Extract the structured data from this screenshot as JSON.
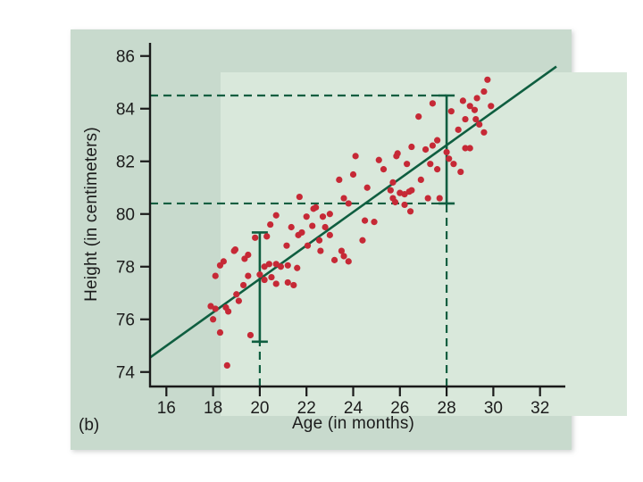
{
  "figure": {
    "label": "(b)"
  },
  "chart_data": {
    "type": "scatter",
    "title": "",
    "xlabel": "Age (in months)",
    "ylabel": "Height (in centimeters)",
    "xlim": [
      15.3,
      32.7
    ],
    "ylim": [
      73.45,
      86.5
    ],
    "x_ticks": [
      16,
      18,
      20,
      22,
      24,
      26,
      28,
      30,
      32
    ],
    "y_ticks": [
      74,
      76,
      78,
      80,
      82,
      84,
      86
    ],
    "grid": false,
    "legend": "none",
    "colors": {
      "point": "#c62936",
      "line": "#0f5e40",
      "axis": "#1a1a1a",
      "tick_text": "#1c1c1c",
      "panel_bg": "#c8dacd",
      "plot_bg": "#d9e8db"
    },
    "regression_line": {
      "x1": 15.3,
      "y1": 74.55,
      "x2": 32.7,
      "y2": 85.6
    },
    "error_bars": [
      {
        "x": 20,
        "low": 75.15,
        "high": 79.3
      },
      {
        "x": 28,
        "low": 80.4,
        "high": 84.5
      }
    ],
    "dashed_h_lines": [
      {
        "y": 84.5,
        "x_start": 15.3,
        "x_end": 28
      },
      {
        "y": 80.4,
        "x_start": 15.3,
        "x_end": 28
      }
    ],
    "dashed_v_lines": [
      {
        "x": 20,
        "y_start": 73.45,
        "y_end": 75.15
      },
      {
        "x": 28,
        "y_start": 73.45,
        "y_end": 80.4
      }
    ],
    "points": [
      [
        17.9,
        76.5
      ],
      [
        18.0,
        76.0
      ],
      [
        18.1,
        77.65
      ],
      [
        18.1,
        76.4
      ],
      [
        18.3,
        78.05
      ],
      [
        18.3,
        75.5
      ],
      [
        18.45,
        78.2
      ],
      [
        18.55,
        76.45
      ],
      [
        18.65,
        76.3
      ],
      [
        18.6,
        74.25
      ],
      [
        18.9,
        78.6
      ],
      [
        18.95,
        78.65
      ],
      [
        19.0,
        76.95
      ],
      [
        19.1,
        76.7
      ],
      [
        19.3,
        77.3
      ],
      [
        19.35,
        78.3
      ],
      [
        19.5,
        78.45
      ],
      [
        19.5,
        77.65
      ],
      [
        19.6,
        75.4
      ],
      [
        19.8,
        79.1
      ],
      [
        20.0,
        77.7
      ],
      [
        20.3,
        79.15
      ],
      [
        20.2,
        78.0
      ],
      [
        20.2,
        77.5
      ],
      [
        20.4,
        78.1
      ],
      [
        20.45,
        79.6
      ],
      [
        20.5,
        77.6
      ],
      [
        20.7,
        79.95
      ],
      [
        20.7,
        78.1
      ],
      [
        20.7,
        77.35
      ],
      [
        20.9,
        78.0
      ],
      [
        21.15,
        78.8
      ],
      [
        21.2,
        78.05
      ],
      [
        21.2,
        77.4
      ],
      [
        21.35,
        79.5
      ],
      [
        21.45,
        77.3
      ],
      [
        21.6,
        77.95
      ],
      [
        21.65,
        79.2
      ],
      [
        21.7,
        80.65
      ],
      [
        21.8,
        79.3
      ],
      [
        22.0,
        79.9
      ],
      [
        22.05,
        78.8
      ],
      [
        22.25,
        79.55
      ],
      [
        22.3,
        80.2
      ],
      [
        22.4,
        80.25
      ],
      [
        22.55,
        79.0
      ],
      [
        22.6,
        78.6
      ],
      [
        22.7,
        79.9
      ],
      [
        22.8,
        79.5
      ],
      [
        23.0,
        80.0
      ],
      [
        23.0,
        79.2
      ],
      [
        23.2,
        78.25
      ],
      [
        23.4,
        81.3
      ],
      [
        23.5,
        78.6
      ],
      [
        23.6,
        80.6
      ],
      [
        23.6,
        78.4
      ],
      [
        23.8,
        80.4
      ],
      [
        23.8,
        78.2
      ],
      [
        24.0,
        81.5
      ],
      [
        24.1,
        82.2
      ],
      [
        24.4,
        79.0
      ],
      [
        24.5,
        79.75
      ],
      [
        24.6,
        81.0
      ],
      [
        24.9,
        79.7
      ],
      [
        25.1,
        82.05
      ],
      [
        25.3,
        81.7
      ],
      [
        25.6,
        80.9
      ],
      [
        25.7,
        81.2
      ],
      [
        25.7,
        80.6
      ],
      [
        25.8,
        80.45
      ],
      [
        25.85,
        82.2
      ],
      [
        25.9,
        82.3
      ],
      [
        26.3,
        81.9
      ],
      [
        26.0,
        80.8
      ],
      [
        26.2,
        80.75
      ],
      [
        26.2,
        80.35
      ],
      [
        26.4,
        80.85
      ],
      [
        26.45,
        80.1
      ],
      [
        26.5,
        82.55
      ],
      [
        26.5,
        80.9
      ],
      [
        26.8,
        83.7
      ],
      [
        26.9,
        81.3
      ],
      [
        27.1,
        82.45
      ],
      [
        27.2,
        80.6
      ],
      [
        27.3,
        81.9
      ],
      [
        27.4,
        84.2
      ],
      [
        27.4,
        82.6
      ],
      [
        27.6,
        82.8
      ],
      [
        27.6,
        81.7
      ],
      [
        27.7,
        80.6
      ],
      [
        28.0,
        82.35
      ],
      [
        28.1,
        82.1
      ],
      [
        28.2,
        83.9
      ],
      [
        28.3,
        81.9
      ],
      [
        28.5,
        83.2
      ],
      [
        28.6,
        81.6
      ],
      [
        28.7,
        84.3
      ],
      [
        28.8,
        83.6
      ],
      [
        28.8,
        82.5
      ],
      [
        29.0,
        84.1
      ],
      [
        29.0,
        82.5
      ],
      [
        29.2,
        83.95
      ],
      [
        29.25,
        83.6
      ],
      [
        29.3,
        84.4
      ],
      [
        29.4,
        83.4
      ],
      [
        29.6,
        84.65
      ],
      [
        29.6,
        83.1
      ],
      [
        29.75,
        85.1
      ],
      [
        29.9,
        84.1
      ]
    ]
  }
}
